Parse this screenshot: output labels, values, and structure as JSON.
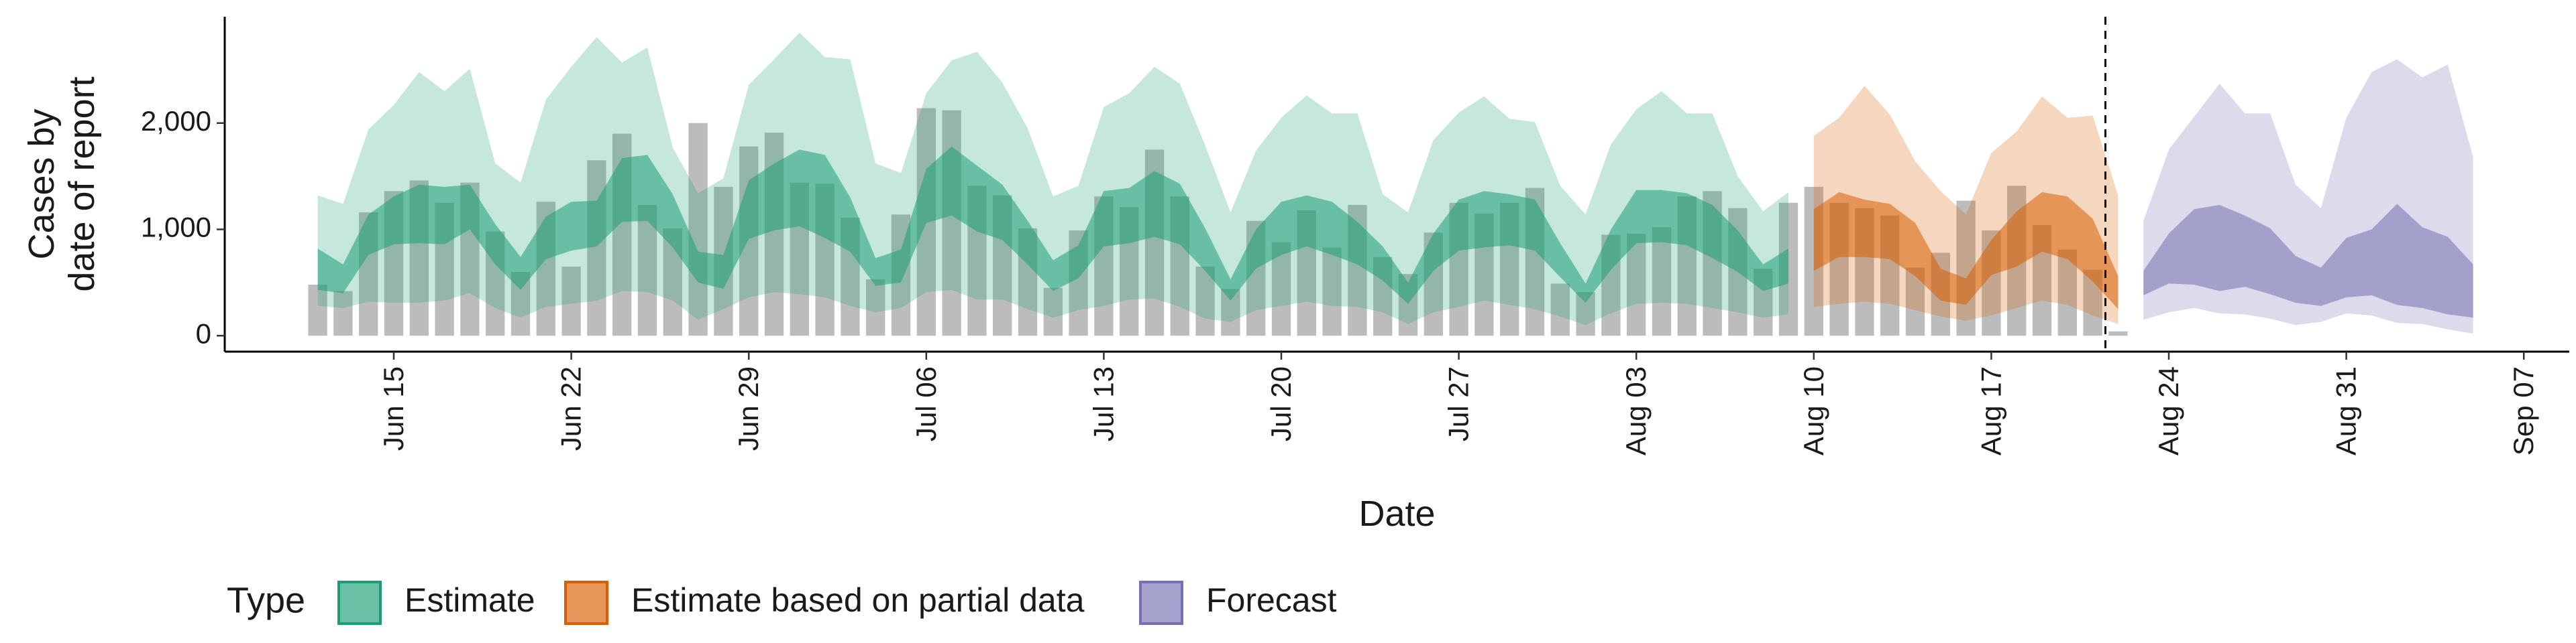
{
  "chart_data": {
    "type": "area",
    "xlabel": "Date",
    "ylabel_lines": [
      "Cases by",
      "date of report"
    ],
    "x_ticks": [
      "Jun 15",
      "Jun 22",
      "Jun 29",
      "Jul 06",
      "Jul 13",
      "Jul 20",
      "Jul 27",
      "Aug 03",
      "Aug 10",
      "Aug 17",
      "Aug 24",
      "Aug 31",
      "Sep 07"
    ],
    "y_ticks": [
      "0",
      "1,000",
      "2,000"
    ],
    "ylim": [
      -150,
      3000
    ],
    "forecast_start": "Aug 22",
    "legend": {
      "title": "Type",
      "position": "bottom",
      "items": [
        {
          "label": "Estimate",
          "color": "#1B9E77"
        },
        {
          "label": "Estimate based on partial data",
          "color": "#D95F02"
        },
        {
          "label": "Forecast",
          "color": "#7570B3"
        }
      ]
    },
    "colors": {
      "bar": "#a6a6a6",
      "estimate": "#1B9E77",
      "partial": "#D95F02",
      "forecast": "#7570B3"
    },
    "bars": {
      "x": [
        "Jun 12",
        "Jun 13",
        "Jun 14",
        "Jun 15",
        "Jun 16",
        "Jun 17",
        "Jun 18",
        "Jun 19",
        "Jun 20",
        "Jun 21",
        "Jun 22",
        "Jun 23",
        "Jun 24",
        "Jun 25",
        "Jun 26",
        "Jun 27",
        "Jun 28",
        "Jun 29",
        "Jun 30",
        "Jul 01",
        "Jul 02",
        "Jul 03",
        "Jul 04",
        "Jul 05",
        "Jul 06",
        "Jul 07",
        "Jul 08",
        "Jul 09",
        "Jul 10",
        "Jul 11",
        "Jul 12",
        "Jul 13",
        "Jul 14",
        "Jul 15",
        "Jul 16",
        "Jul 17",
        "Jul 18",
        "Jul 19",
        "Jul 20",
        "Jul 21",
        "Jul 22",
        "Jul 23",
        "Jul 24",
        "Jul 25",
        "Jul 26",
        "Jul 27",
        "Jul 28",
        "Jul 29",
        "Jul 30",
        "Jul 31",
        "Aug 01",
        "Aug 02",
        "Aug 03",
        "Aug 04",
        "Aug 05",
        "Aug 06",
        "Aug 07",
        "Aug 08",
        "Aug 09",
        "Aug 10",
        "Aug 11",
        "Aug 12",
        "Aug 13",
        "Aug 14",
        "Aug 15",
        "Aug 16",
        "Aug 17",
        "Aug 18",
        "Aug 19",
        "Aug 20",
        "Aug 21",
        "Aug 22"
      ],
      "values": [
        480,
        420,
        1160,
        1360,
        1460,
        1250,
        1440,
        980,
        600,
        1260,
        650,
        1650,
        1900,
        1230,
        1010,
        2000,
        1400,
        1780,
        1910,
        1440,
        1430,
        1110,
        530,
        1140,
        2140,
        2120,
        1410,
        1320,
        1010,
        450,
        990,
        1310,
        1210,
        1750,
        1310,
        650,
        440,
        1080,
        880,
        1180,
        830,
        1230,
        740,
        580,
        970,
        1250,
        1150,
        1250,
        1390,
        490,
        410,
        950,
        960,
        1020,
        1310,
        1360,
        1200,
        630,
        1250,
        1400,
        1250,
        1200,
        1130,
        640,
        780,
        1270,
        990,
        1410,
        1040,
        810,
        620,
        40
      ]
    },
    "estimate": {
      "x": [
        "Jun 12",
        "Jun 13",
        "Jun 14",
        "Jun 15",
        "Jun 16",
        "Jun 17",
        "Jun 18",
        "Jun 19",
        "Jun 20",
        "Jun 21",
        "Jun 22",
        "Jun 23",
        "Jun 24",
        "Jun 25",
        "Jun 26",
        "Jun 27",
        "Jun 28",
        "Jun 29",
        "Jun 30",
        "Jul 01",
        "Jul 02",
        "Jul 03",
        "Jul 04",
        "Jul 05",
        "Jul 06",
        "Jul 07",
        "Jul 08",
        "Jul 09",
        "Jul 10",
        "Jul 11",
        "Jul 12",
        "Jul 13",
        "Jul 14",
        "Jul 15",
        "Jul 16",
        "Jul 17",
        "Jul 18",
        "Jul 19",
        "Jul 20",
        "Jul 21",
        "Jul 22",
        "Jul 23",
        "Jul 24",
        "Jul 25",
        "Jul 26",
        "Jul 27",
        "Jul 28",
        "Jul 29",
        "Jul 30",
        "Jul 31",
        "Aug 01",
        "Aug 02",
        "Aug 03",
        "Aug 04",
        "Aug 05",
        "Aug 06",
        "Aug 07",
        "Aug 08",
        "Aug 09"
      ],
      "lower90": [
        280,
        260,
        320,
        310,
        310,
        330,
        400,
        260,
        170,
        270,
        300,
        330,
        420,
        410,
        330,
        150,
        250,
        360,
        410,
        390,
        360,
        280,
        220,
        260,
        410,
        430,
        340,
        340,
        250,
        170,
        240,
        280,
        340,
        350,
        270,
        160,
        130,
        240,
        280,
        320,
        280,
        270,
        220,
        110,
        220,
        270,
        330,
        290,
        250,
        180,
        100,
        210,
        300,
        310,
        300,
        260,
        220,
        170,
        200
      ],
      "lower50": [
        430,
        400,
        760,
        860,
        870,
        860,
        1000,
        670,
        430,
        720,
        800,
        840,
        1070,
        1080,
        830,
        500,
        440,
        910,
        990,
        1030,
        920,
        790,
        470,
        500,
        1060,
        1130,
        980,
        900,
        670,
        420,
        540,
        840,
        870,
        930,
        860,
        610,
        330,
        630,
        760,
        840,
        760,
        670,
        520,
        300,
        610,
        800,
        830,
        850,
        800,
        550,
        310,
        620,
        870,
        880,
        850,
        730,
        600,
        420,
        490
      ],
      "upper50": [
        820,
        670,
        1140,
        1310,
        1420,
        1400,
        1420,
        1050,
        740,
        1120,
        1260,
        1270,
        1670,
        1700,
        1330,
        790,
        760,
        1460,
        1620,
        1750,
        1700,
        1300,
        730,
        810,
        1570,
        1780,
        1600,
        1420,
        1080,
        710,
        850,
        1360,
        1390,
        1550,
        1430,
        1010,
        530,
        1000,
        1260,
        1320,
        1260,
        1070,
        840,
        500,
        960,
        1280,
        1360,
        1330,
        1280,
        870,
        490,
        1000,
        1370,
        1370,
        1340,
        1230,
        990,
        670,
        820
      ],
      "upper90": [
        1320,
        1240,
        1940,
        2170,
        2480,
        2300,
        2510,
        1620,
        1440,
        2220,
        2530,
        2810,
        2570,
        2710,
        1770,
        1340,
        1480,
        2360,
        2600,
        2850,
        2620,
        2600,
        1620,
        1530,
        2280,
        2590,
        2670,
        2380,
        1950,
        1310,
        1410,
        2150,
        2280,
        2530,
        2370,
        1790,
        1160,
        1740,
        2050,
        2260,
        2090,
        2090,
        1330,
        1160,
        1840,
        2100,
        2250,
        2040,
        2010,
        1410,
        1140,
        1800,
        2130,
        2300,
        2090,
        2090,
        1500,
        1170,
        1350
      ]
    },
    "partial": {
      "x": [
        "Aug 10",
        "Aug 11",
        "Aug 12",
        "Aug 13",
        "Aug 14",
        "Aug 15",
        "Aug 16",
        "Aug 17",
        "Aug 18",
        "Aug 19",
        "Aug 20",
        "Aug 21",
        "Aug 22"
      ],
      "lower90": [
        270,
        300,
        320,
        300,
        240,
        180,
        140,
        190,
        260,
        330,
        290,
        190,
        110
      ],
      "lower50": [
        610,
        740,
        740,
        720,
        560,
        330,
        290,
        570,
        650,
        790,
        720,
        510,
        250
      ],
      "upper50": [
        1190,
        1350,
        1280,
        1240,
        1060,
        630,
        540,
        900,
        1170,
        1350,
        1310,
        1100,
        560
      ],
      "upper90": [
        1880,
        2050,
        2350,
        2080,
        1640,
        1360,
        1140,
        1720,
        1920,
        2250,
        2050,
        2070,
        1320
      ]
    },
    "forecast": {
      "x": [
        "Aug 23",
        "Aug 24",
        "Aug 25",
        "Aug 26",
        "Aug 27",
        "Aug 28",
        "Aug 29",
        "Aug 30",
        "Aug 31",
        "Sep 01",
        "Sep 02",
        "Sep 03",
        "Sep 04",
        "Sep 05"
      ],
      "lower90": [
        150,
        220,
        260,
        210,
        200,
        160,
        100,
        130,
        210,
        190,
        120,
        110,
        60,
        20
      ],
      "lower50": [
        380,
        490,
        480,
        420,
        460,
        390,
        310,
        280,
        360,
        380,
        290,
        260,
        200,
        170
      ],
      "upper50": [
        610,
        960,
        1190,
        1230,
        1130,
        1010,
        750,
        640,
        920,
        1000,
        1240,
        1020,
        930,
        670
      ],
      "upper90": [
        1080,
        1750,
        2060,
        2370,
        2090,
        2090,
        1420,
        1200,
        2050,
        2480,
        2600,
        2430,
        2550,
        1680
      ]
    }
  }
}
